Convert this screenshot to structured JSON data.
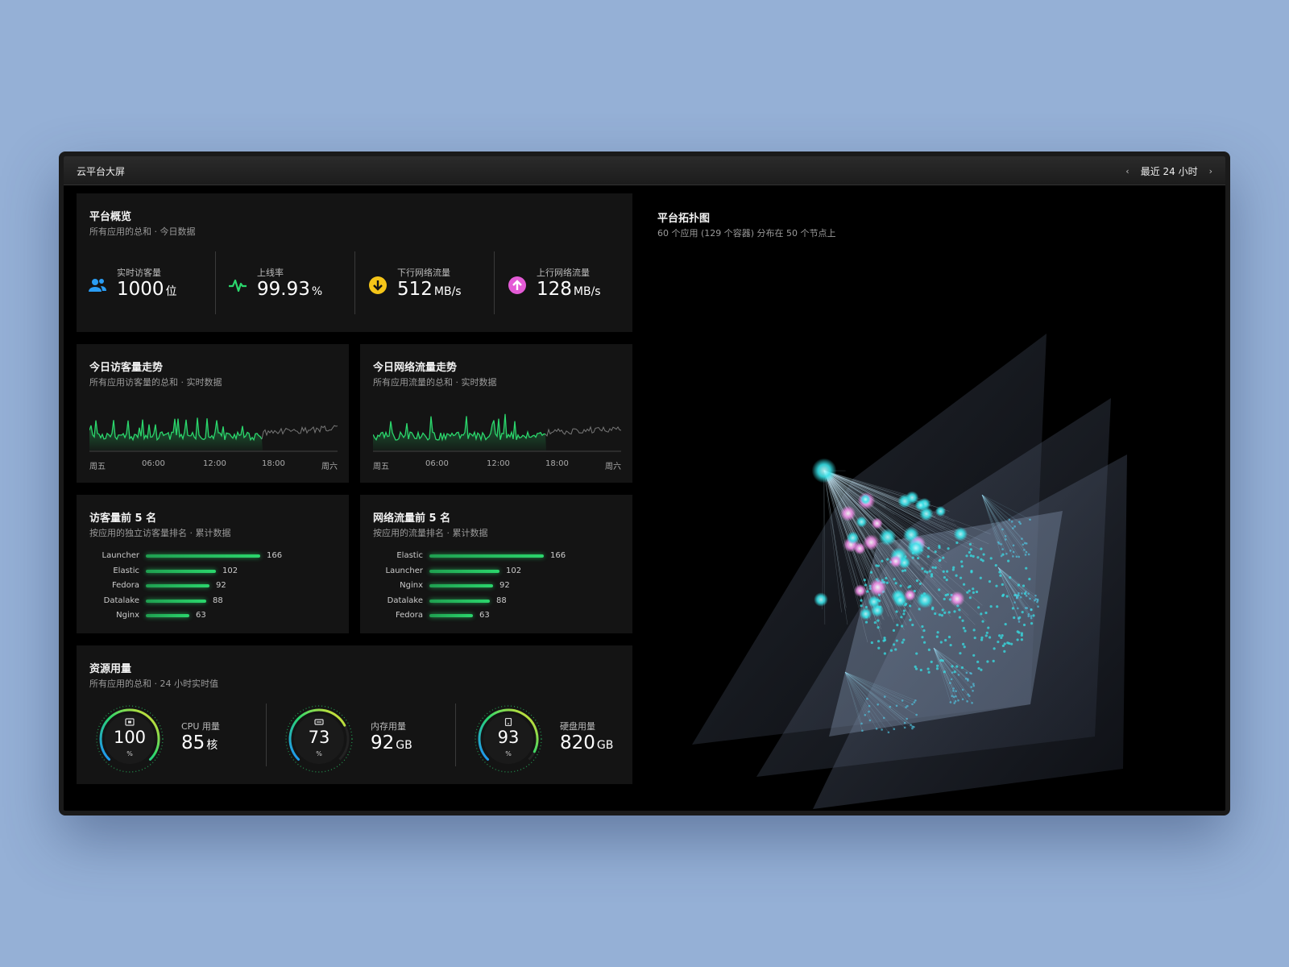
{
  "window": {
    "title": "云平台大屏",
    "range_label": "最近 24 小时"
  },
  "overview": {
    "title": "平台概览",
    "subtitle": "所有应用的总和 · 今日数据",
    "stats": [
      {
        "label": "实时访客量",
        "value": "1000",
        "unit": "位",
        "icon": "users-icon",
        "color": "#2a9df4"
      },
      {
        "label": "上线率",
        "value": "99.93",
        "unit": "%",
        "icon": "pulse-icon",
        "color": "#2bd66c"
      },
      {
        "label": "下行网络流量",
        "value": "512",
        "unit": "MB/s",
        "icon": "download-icon",
        "color": "#f5c518"
      },
      {
        "label": "上行网络流量",
        "value": "128",
        "unit": "MB/s",
        "icon": "upload-icon",
        "color": "#e45bd6"
      }
    ]
  },
  "visitor_trend": {
    "title": "今日访客量走势",
    "subtitle": "所有应用访客量的总和 · 实时数据",
    "x_labels": [
      "周五",
      "06:00",
      "12:00",
      "18:00",
      "周六"
    ]
  },
  "network_trend": {
    "title": "今日网络流量走势",
    "subtitle": "所有应用流量的总和 · 实时数据",
    "x_labels": [
      "周五",
      "06:00",
      "12:00",
      "18:00",
      "周六"
    ]
  },
  "visitor_top5": {
    "title": "访客量前 5 名",
    "subtitle": "按应用的独立访客量排名 · 累计数据",
    "items": [
      {
        "name": "Launcher",
        "value": 166
      },
      {
        "name": "Elastic",
        "value": 102
      },
      {
        "name": "Fedora",
        "value": 92
      },
      {
        "name": "Datalake",
        "value": 88
      },
      {
        "name": "Nginx",
        "value": 63
      }
    ]
  },
  "network_top5": {
    "title": "网络流量前 5 名",
    "subtitle": "按应用的流量排名 · 累计数据",
    "items": [
      {
        "name": "Elastic",
        "value": 166
      },
      {
        "name": "Launcher",
        "value": 102
      },
      {
        "name": "Nginx",
        "value": 92
      },
      {
        "name": "Datalake",
        "value": 88
      },
      {
        "name": "Fedora",
        "value": 63
      }
    ]
  },
  "resources": {
    "title": "资源用量",
    "subtitle": "所有应用的总和 · 24 小时实时值",
    "items": [
      {
        "percent": "100",
        "pct_sign": "%",
        "label": "CPU 用量",
        "value": "85",
        "unit": "核",
        "icon": "cpu-icon"
      },
      {
        "percent": "73",
        "pct_sign": "%",
        "label": "内存用量",
        "value": "92",
        "unit": "GB",
        "icon": "memory-icon"
      },
      {
        "percent": "93",
        "pct_sign": "%",
        "label": "硬盘用量",
        "value": "820",
        "unit": "GB",
        "icon": "disk-icon"
      }
    ]
  },
  "topology": {
    "title": "平台拓扑图",
    "subtitle": "60 个应用 (129 个容器) 分布在 50 个节点上"
  },
  "colors": {
    "accent_green": "#2bd66c",
    "accent_cyan": "#36e0e6",
    "accent_pink": "#f08ee8"
  }
}
